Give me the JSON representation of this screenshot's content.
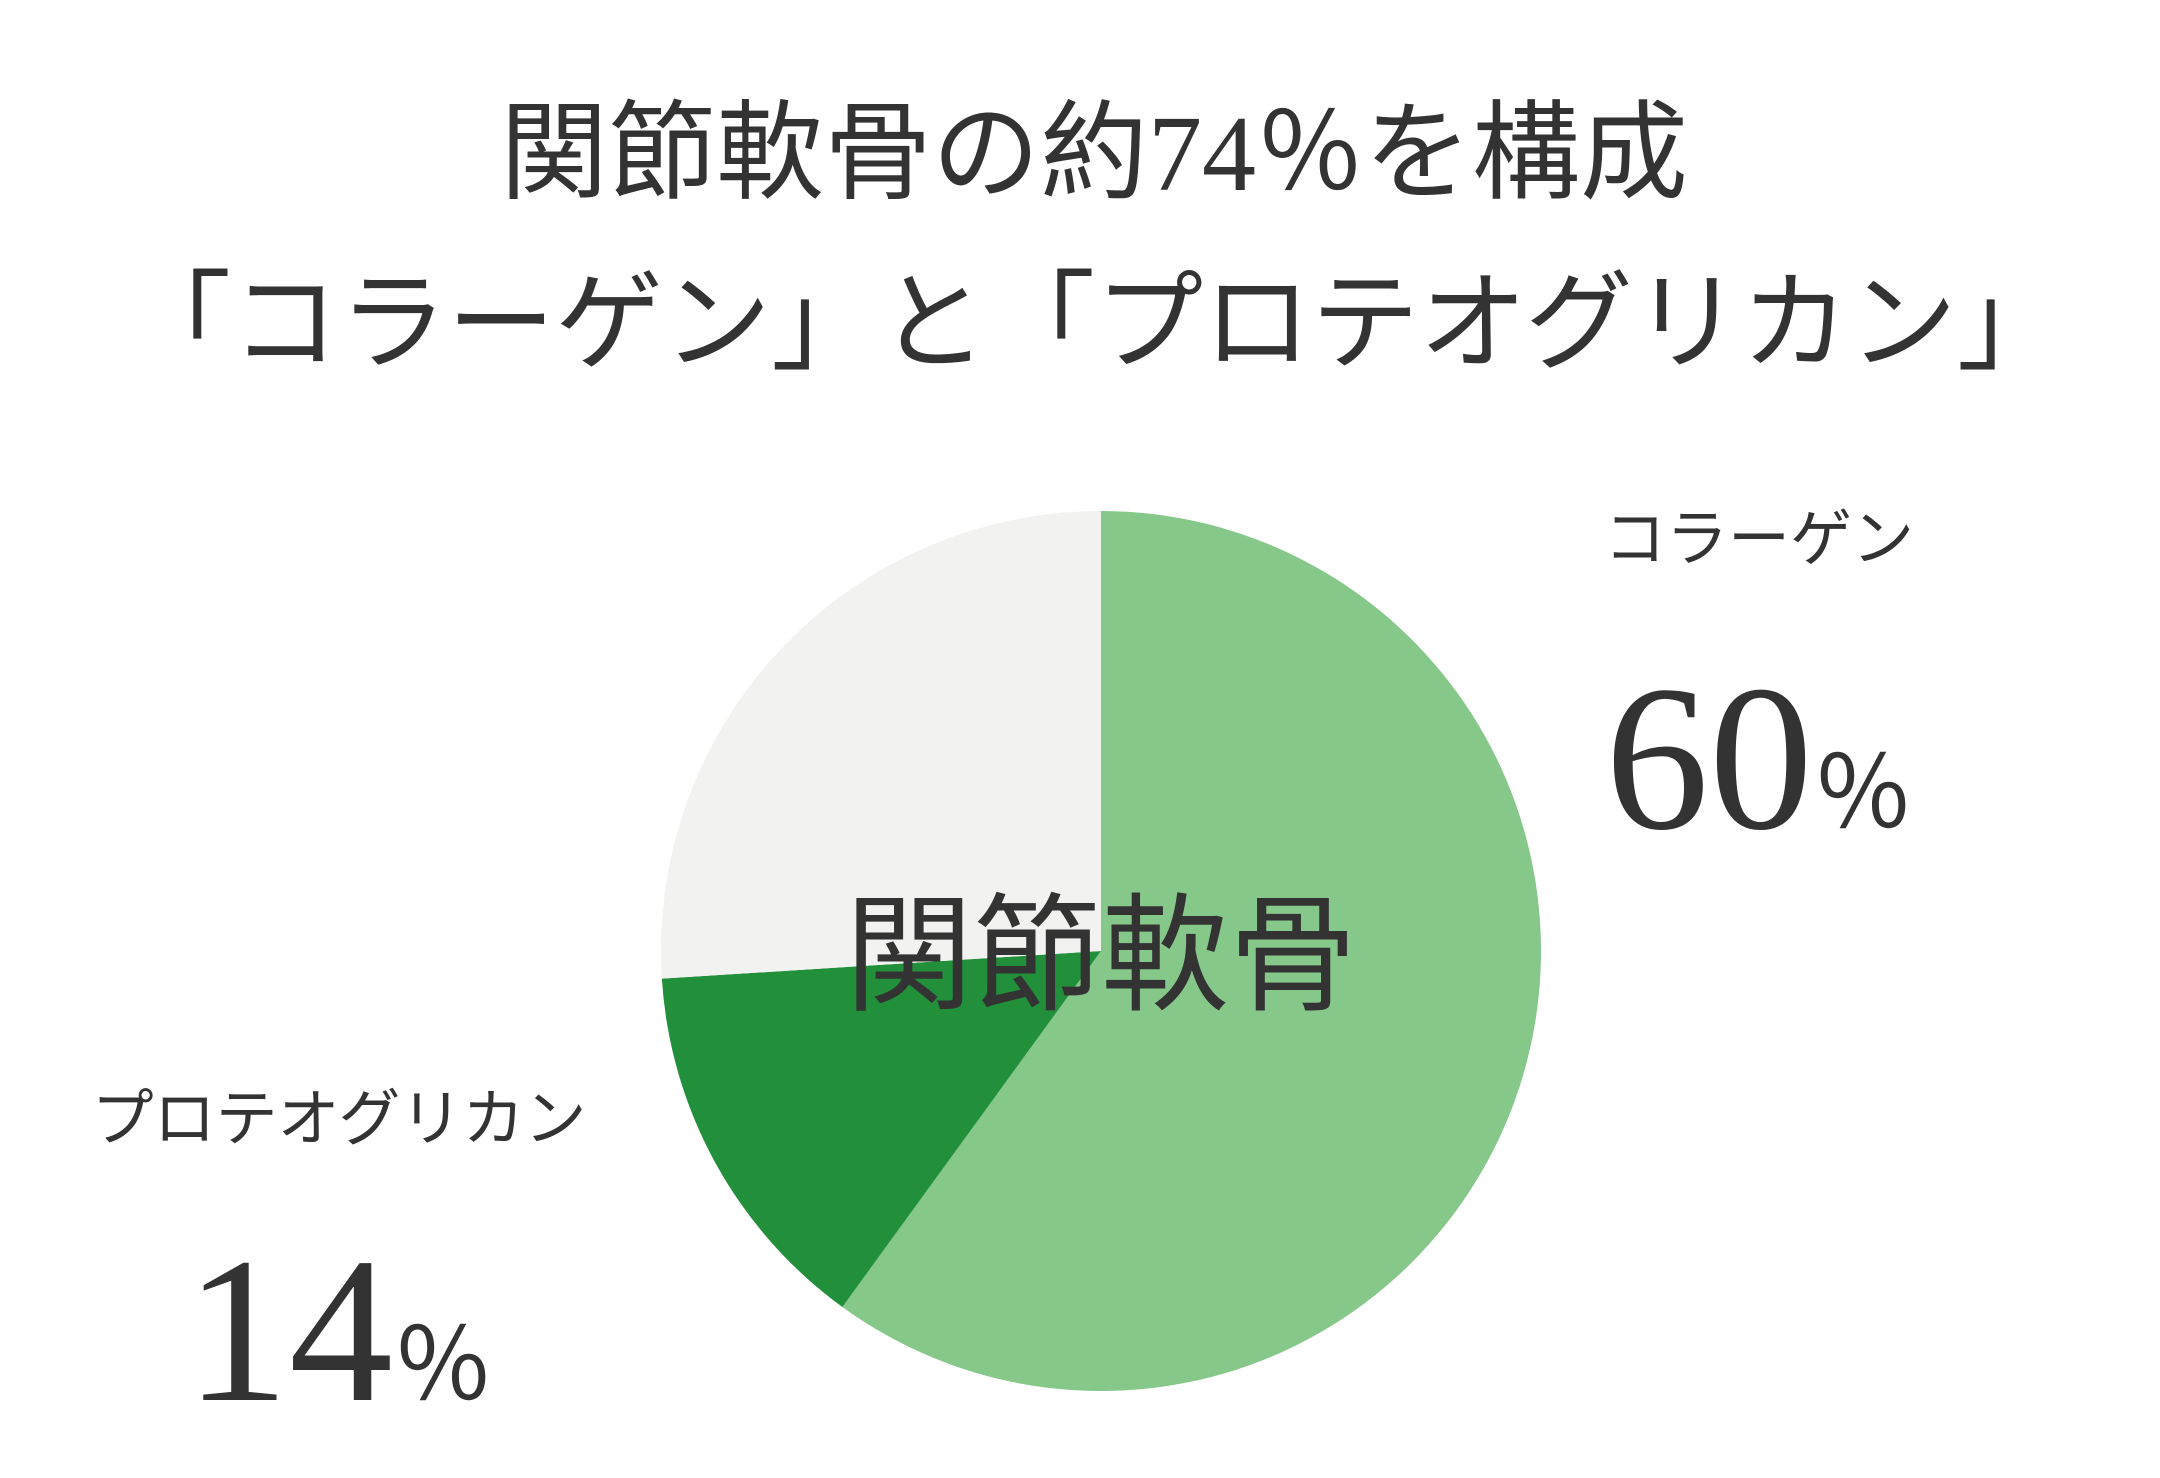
{
  "chart_data": {
    "type": "pie",
    "title": [
      "関節軟骨の約74％を構成",
      "「コラーゲン」と「プロテオグリカン」"
    ],
    "center_label": "関節軟骨",
    "categories": [
      "コラーゲン",
      "プロテオグリカン",
      null
    ],
    "values": [
      60,
      14,
      26
    ],
    "value_labels": [
      "60％",
      "14％",
      null
    ],
    "colors": [
      "#86c78a",
      "#228f3a",
      "#f2f2f1"
    ],
    "start_angle": 0,
    "direction": "clockwise"
  }
}
